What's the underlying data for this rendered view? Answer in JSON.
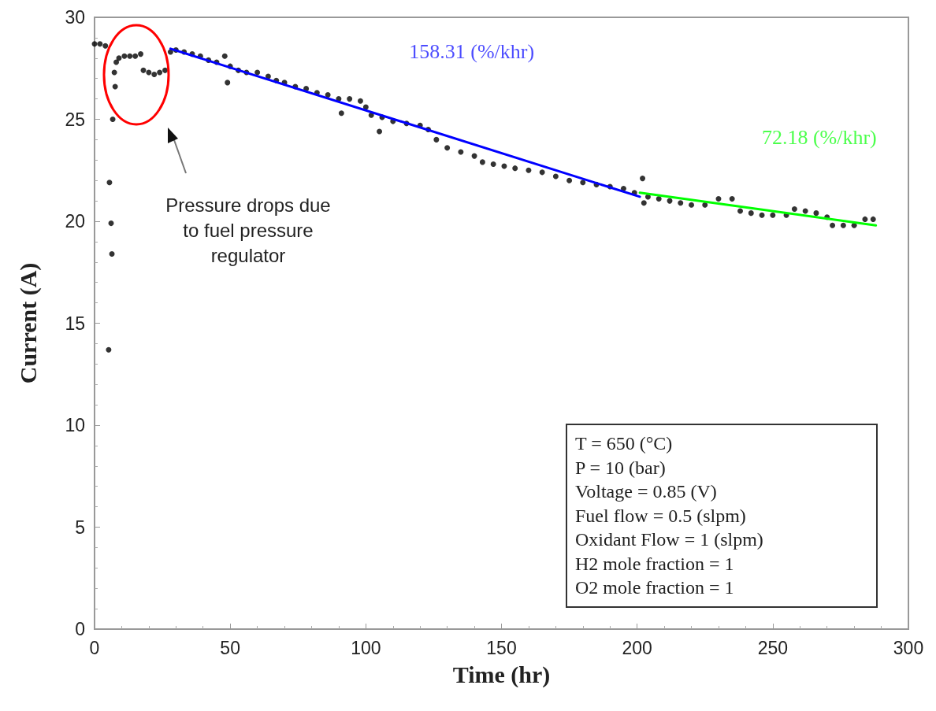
{
  "chart_data": {
    "type": "scatter",
    "xlabel": "Time (hr)",
    "ylabel": "Current (A)",
    "xlim": [
      0,
      300
    ],
    "xticks": [
      0,
      50,
      100,
      150,
      200,
      250,
      300
    ],
    "ylim": [
      0,
      30
    ],
    "yticks": [
      0,
      5,
      10,
      15,
      20,
      25,
      30
    ],
    "grid": false,
    "legend": false,
    "marker": "circle",
    "series": [
      {
        "color": "#000000",
        "x": [
          0,
          2,
          4,
          5.2,
          5.5,
          6.1,
          6.4,
          6.7,
          7.3,
          7.6,
          8,
          9,
          11,
          13,
          15,
          17,
          18,
          20,
          22,
          24,
          26,
          28,
          30,
          33,
          36,
          39,
          42,
          45,
          48,
          49,
          50,
          53,
          56,
          60,
          64,
          67,
          70,
          74,
          78,
          82,
          86,
          90,
          91,
          94,
          98,
          100,
          102,
          105,
          106,
          110,
          115,
          120,
          123,
          126,
          130,
          135,
          140,
          143,
          147,
          151,
          155,
          160,
          165,
          170,
          175,
          180,
          185,
          190,
          195,
          199,
          202,
          202.5,
          204,
          208,
          212,
          216,
          220,
          225,
          230,
          235,
          238,
          242,
          246,
          250,
          255,
          258,
          262,
          266,
          270,
          272,
          276,
          280,
          284,
          287
        ],
        "values": [
          28.7,
          28.7,
          28.6,
          13.7,
          21.9,
          19.9,
          18.4,
          25.0,
          27.3,
          26.6,
          27.8,
          28.0,
          28.1,
          28.1,
          28.1,
          28.2,
          27.4,
          27.3,
          27.2,
          27.3,
          27.4,
          28.3,
          28.4,
          28.3,
          28.2,
          28.1,
          27.9,
          27.8,
          28.1,
          26.8,
          27.6,
          27.4,
          27.3,
          27.3,
          27.1,
          26.9,
          26.8,
          26.6,
          26.5,
          26.3,
          26.2,
          26.0,
          25.3,
          26.0,
          25.9,
          25.6,
          25.2,
          24.4,
          25.1,
          24.9,
          24.8,
          24.7,
          24.5,
          24.0,
          23.6,
          23.4,
          23.2,
          22.9,
          22.8,
          22.7,
          22.6,
          22.5,
          22.4,
          22.2,
          22.0,
          21.9,
          21.8,
          21.7,
          21.6,
          21.4,
          22.1,
          20.9,
          21.2,
          21.1,
          21.0,
          20.9,
          20.8,
          20.8,
          21.1,
          21.1,
          20.5,
          20.4,
          20.3,
          20.3,
          20.3,
          20.6,
          20.5,
          20.4,
          20.2,
          19.8,
          19.8,
          19.8,
          20.1,
          20.1
        ]
      },
      {
        "type": "line",
        "marker": "none",
        "name": "158.31 (%/khr)",
        "color": "#0000ff",
        "x": [
          28,
          201
        ],
        "values": [
          28.46,
          21.2
        ]
      },
      {
        "type": "line",
        "marker": "none",
        "name": "72.18 (%/khr)",
        "color": "#00ff00",
        "x": [
          201,
          288
        ],
        "values": [
          21.4,
          19.8
        ]
      }
    ],
    "annotations": [
      "Pressure drops due\nto fuel pressure\nregulator",
      "T = 650 (°C)",
      "P = 10 (bar)",
      "Voltage = 0.85 (V)",
      "Fuel flow = 0.5 (slpm)",
      "Oxidant Flow = 1 (slpm)",
      "H2 mole fraction = 1",
      "O2 mole fraction = 1"
    ]
  }
}
